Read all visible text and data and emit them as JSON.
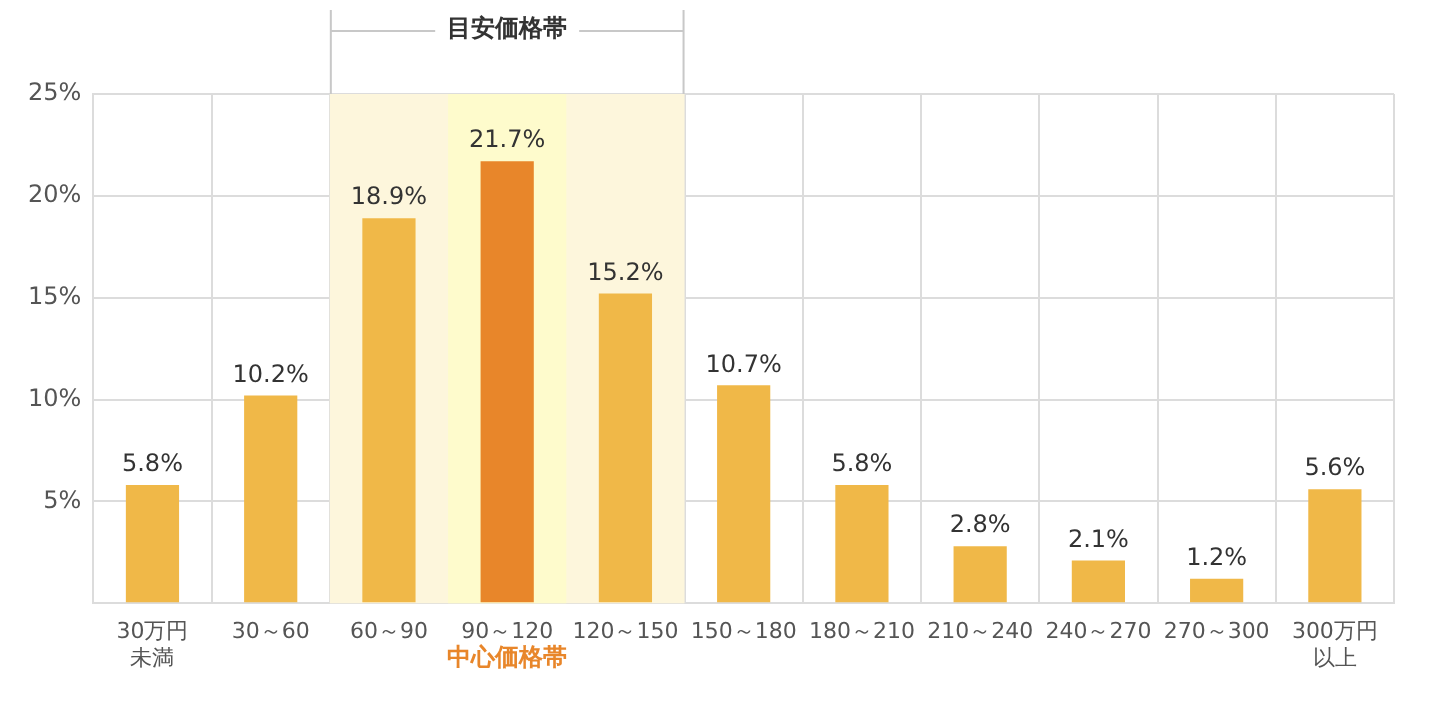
{
  "chart_data": {
    "type": "bar",
    "categories": [
      "30万円未満",
      "30～60",
      "60～90",
      "90～120",
      "120～150",
      "150～180",
      "180～210",
      "210～240",
      "240～270",
      "270～300",
      "300万円以上"
    ],
    "values": [
      5.8,
      10.2,
      18.9,
      21.7,
      15.2,
      10.7,
      5.8,
      2.8,
      2.1,
      1.2,
      5.6
    ],
    "colors": [
      "#f0b848",
      "#f0b848",
      "#f0b848",
      "#e8862a",
      "#f0b848",
      "#f0b848",
      "#f0b848",
      "#f0b848",
      "#f0b848",
      "#f0b848",
      "#f0b848"
    ],
    "value_labels": [
      "5.8%",
      "10.2%",
      "18.9%",
      "21.7%",
      "15.2%",
      "10.7%",
      "5.8%",
      "2.8%",
      "2.1%",
      "1.2%",
      "5.6%"
    ],
    "ylim": [
      0,
      25
    ],
    "yticks": [
      {
        "value": 0,
        "label": null
      },
      {
        "value": 5,
        "label": "5%"
      },
      {
        "value": 10,
        "label": "10%"
      },
      {
        "value": 15,
        "label": "15%"
      },
      {
        "value": 20,
        "label": "20%"
      },
      {
        "value": 25,
        "label": "25%"
      }
    ],
    "bands": [
      {
        "axis": "x",
        "from": "60～90",
        "to": "120～150",
        "label": "目安価格帯",
        "color": "#fdf6dc"
      },
      {
        "axis": "x",
        "from": "90～120",
        "to": "90～120",
        "label": "中心価格帯",
        "color": "#fefbcc"
      }
    ],
    "grid": true,
    "legend": false
  }
}
